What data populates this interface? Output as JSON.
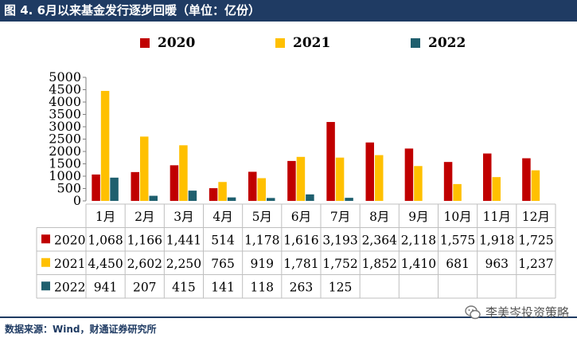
{
  "title": "图 4. 6月以来基金发行逐步回暖（单位：亿份）",
  "source": "数据来源：Wind，财通证券研究所",
  "watermark": "李美岑投资策略",
  "watermark_icon": "wechat-icon",
  "colors": {
    "title_bg": "#1f3b63",
    "s2020": "#c00000",
    "s2021": "#ffc000",
    "s2022": "#1f5f6e",
    "grid": "#bfbfbf"
  },
  "chart_data": {
    "type": "bar",
    "title": "",
    "xlabel": "",
    "ylabel": "",
    "ylim": [
      0,
      5000
    ],
    "yticks": [
      0,
      500,
      1000,
      1500,
      2000,
      2500,
      3000,
      3500,
      4000,
      4500,
      5000
    ],
    "ytick_labels": [
      "0",
      "500",
      "1000",
      "1500",
      "2000",
      "2500",
      "3000",
      "3500",
      "4000",
      "4500",
      "5000"
    ],
    "legend_position": "top",
    "grid": false,
    "categories": [
      "1月",
      "2月",
      "3月",
      "4月",
      "5月",
      "6月",
      "7月",
      "8月",
      "9月",
      "10月",
      "11月",
      "12月"
    ],
    "series": [
      {
        "name": "2020",
        "color": "#c00000",
        "values": [
          1068,
          1166,
          1441,
          514,
          1178,
          1616,
          3193,
          2364,
          2118,
          1575,
          1918,
          1725
        ],
        "labels": [
          "1,068",
          "1,166",
          "1,441",
          "514",
          "1,178",
          "1,616",
          "3,193",
          "2,364",
          "2,118",
          "1,575",
          "1,918",
          "1,725"
        ]
      },
      {
        "name": "2021",
        "color": "#ffc000",
        "values": [
          4450,
          2602,
          2250,
          765,
          919,
          1781,
          1752,
          1852,
          1410,
          681,
          963,
          1237
        ],
        "labels": [
          "4,450",
          "2,602",
          "2,250",
          "765",
          "919",
          "1,781",
          "1,752",
          "1,852",
          "1,410",
          "681",
          "963",
          "1,237"
        ]
      },
      {
        "name": "2022",
        "color": "#1f5f6e",
        "values": [
          941,
          207,
          415,
          141,
          118,
          263,
          125,
          null,
          null,
          null,
          null,
          null
        ],
        "labels": [
          "941",
          "207",
          "415",
          "141",
          "118",
          "263",
          "125",
          "",
          "",
          "",
          "",
          ""
        ]
      }
    ]
  }
}
